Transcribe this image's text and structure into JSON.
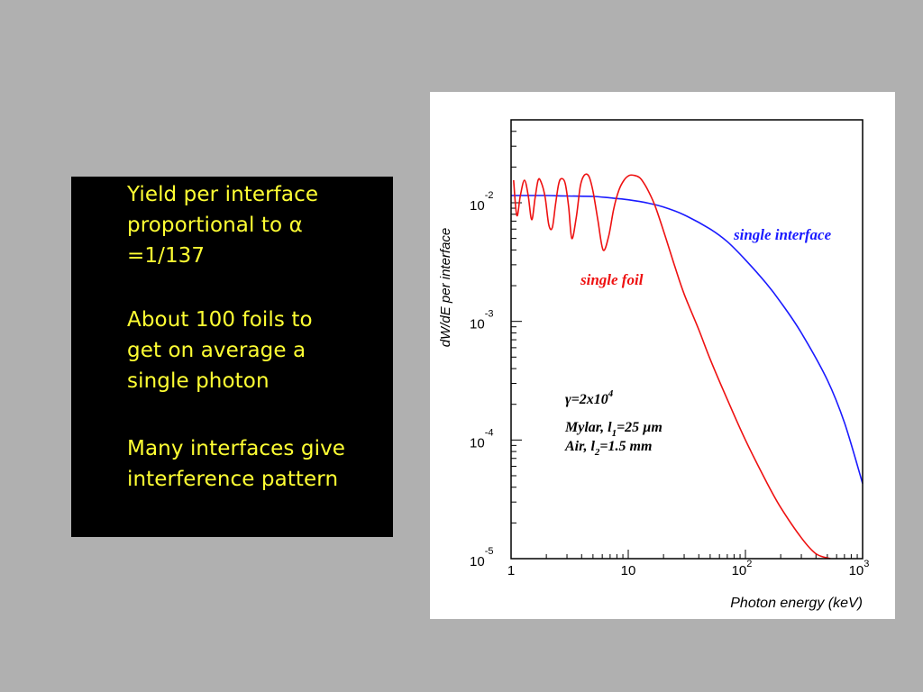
{
  "slide": {
    "background": "#b0b0b0",
    "paragraphs": [
      {
        "lines": [
          "Yield per interface",
          "proportional to α",
          "=1/137"
        ]
      },
      {
        "lines": [
          "About 100 foils to",
          "get on average a",
          "single photon"
        ]
      },
      {
        "lines": [
          "Many interfaces give",
          "interference pattern"
        ]
      }
    ],
    "text_color": "#ffff33",
    "box_color": "#000000"
  },
  "chart_data": {
    "type": "line",
    "xscale": "log",
    "yscale": "log",
    "xlim": [
      1,
      1000
    ],
    "ylim": [
      1e-05,
      0.05
    ],
    "xlabel": "Photon energy (keV)",
    "ylabel": "dW/dE per interface",
    "x_ticks": [
      {
        "value": 1,
        "base": "1",
        "exp": ""
      },
      {
        "value": 10,
        "base": "10",
        "exp": ""
      },
      {
        "value": 100,
        "base": "10",
        "exp": "2"
      },
      {
        "value": 1000,
        "base": "10",
        "exp": "3"
      }
    ],
    "y_ticks": [
      {
        "value": 0.01,
        "base": "10",
        "exp": "-2"
      },
      {
        "value": 0.001,
        "base": "10",
        "exp": "-3"
      },
      {
        "value": 0.0001,
        "base": "10",
        "exp": "-4"
      },
      {
        "value": 1e-05,
        "base": "10",
        "exp": "-5"
      }
    ],
    "series": [
      {
        "name": "single interface",
        "color": "#1a1aff",
        "x": [
          1,
          2,
          3,
          5,
          7,
          10,
          15,
          20,
          30,
          50,
          70,
          100,
          150,
          200,
          300,
          500,
          700,
          1000
        ],
        "y": [
          0.0115,
          0.0115,
          0.0114,
          0.0113,
          0.011,
          0.0106,
          0.0099,
          0.0092,
          0.0079,
          0.006,
          0.0047,
          0.0033,
          0.0021,
          0.00145,
          0.0008,
          0.00032,
          0.00014,
          4.3e-05
        ]
      },
      {
        "name": "single foil",
        "color": "#ee1111",
        "x": [
          1.05,
          1.12,
          1.2,
          1.3,
          1.4,
          1.5,
          1.6,
          1.7,
          1.8,
          1.95,
          2.1,
          2.25,
          2.4,
          2.55,
          2.7,
          2.9,
          3.1,
          3.3,
          3.6,
          3.9,
          4.2,
          4.6,
          5.0,
          5.5,
          6.1,
          6.8,
          7.5,
          8.3,
          9.2,
          10.2,
          11.3,
          12.5,
          13.5,
          15,
          17,
          20,
          25,
          30,
          40,
          50,
          70,
          100,
          150,
          200,
          300,
          400,
          530
        ],
        "y": [
          0.0155,
          0.0078,
          0.0115,
          0.0155,
          0.0115,
          0.0072,
          0.0108,
          0.0155,
          0.015,
          0.0112,
          0.0065,
          0.0062,
          0.0098,
          0.0145,
          0.016,
          0.0145,
          0.0092,
          0.005,
          0.0075,
          0.0138,
          0.017,
          0.0168,
          0.0125,
          0.0072,
          0.004,
          0.0052,
          0.0088,
          0.0127,
          0.0155,
          0.017,
          0.017,
          0.0163,
          0.0148,
          0.0123,
          0.0093,
          0.0058,
          0.0029,
          0.0017,
          0.00085,
          0.00048,
          0.00022,
          0.0001,
          4.5e-05,
          2.7e-05,
          1.5e-05,
          1.1e-05,
          1e-05
        ]
      }
    ],
    "annotations": [
      {
        "id": "label-interface",
        "text": "single interface",
        "color": "#1a1aff"
      },
      {
        "id": "label-foil",
        "text": "single foil",
        "color": "#ee1111"
      },
      {
        "id": "gamma",
        "parts": [
          "γ=2x10",
          "4"
        ]
      },
      {
        "id": "mylar",
        "parts": [
          "Mylar, l",
          "1",
          "=25 µm"
        ]
      },
      {
        "id": "air",
        "parts": [
          "Air, l",
          "2",
          "=1.5 mm"
        ]
      }
    ]
  }
}
